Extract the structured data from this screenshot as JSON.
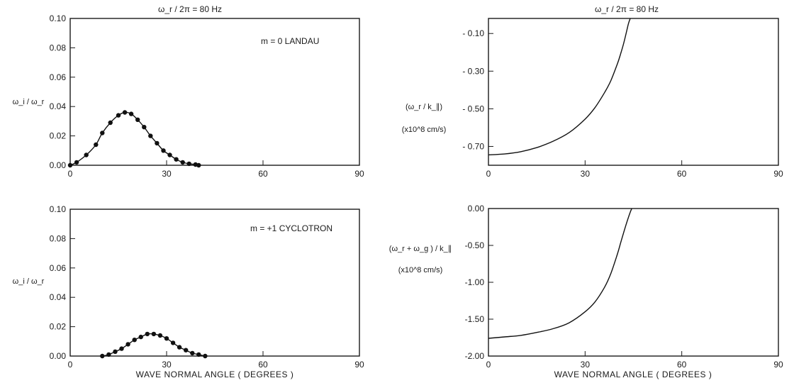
{
  "chart_data": [
    {
      "id": "p1",
      "type": "line",
      "title": "ω_r / 2π = 80 Hz",
      "annotation": "m = 0  LANDAU",
      "ylabel": "ω_i / ω_r",
      "xlabel": "",
      "xlim": [
        0,
        90
      ],
      "ylim": [
        0,
        0.1
      ],
      "xticks": [
        0,
        30,
        60,
        90
      ],
      "yticks": [
        0.0,
        0.02,
        0.04,
        0.06,
        0.08,
        0.1
      ],
      "ytick_labels": [
        "0.00",
        "0.02",
        "0.04",
        "0.06",
        "0.08",
        "0.10"
      ],
      "markers": true,
      "x": [
        0,
        2,
        5,
        8,
        10,
        12.5,
        15,
        17,
        19,
        21,
        23,
        25,
        27,
        29,
        31,
        33,
        35,
        37,
        39,
        40
      ],
      "y": [
        0.0,
        0.002,
        0.007,
        0.014,
        0.022,
        0.029,
        0.034,
        0.036,
        0.035,
        0.031,
        0.026,
        0.02,
        0.015,
        0.01,
        0.007,
        0.004,
        0.002,
        0.001,
        0.0005,
        0.0
      ]
    },
    {
      "id": "p2",
      "type": "line",
      "title": "ω_r / 2π = 80 Hz",
      "annotation": "",
      "ylabel": "(ω_r / k_∥)",
      "ylabel2": "(x10^8 cm/s)",
      "xlabel": "",
      "xlim": [
        0,
        90
      ],
      "ylim": [
        -0.8,
        -0.02
      ],
      "xticks": [
        0,
        30,
        60,
        90
      ],
      "yticks": [
        -0.1,
        -0.3,
        -0.5,
        -0.7
      ],
      "ytick_labels": [
        "- 0.10",
        "- 0.30",
        "- 0.50",
        "- 0.70"
      ],
      "markers": false,
      "x": [
        0,
        5,
        10,
        15,
        20,
        25,
        30,
        33,
        36,
        38,
        40,
        41,
        42,
        43,
        43.5,
        44
      ],
      "y": [
        -0.745,
        -0.74,
        -0.728,
        -0.706,
        -0.673,
        -0.627,
        -0.555,
        -0.495,
        -0.415,
        -0.35,
        -0.262,
        -0.21,
        -0.15,
        -0.08,
        -0.045,
        -0.02
      ]
    },
    {
      "id": "p3",
      "type": "line",
      "title": "",
      "annotation": "m = +1  CYCLOTRON",
      "ylabel": "ω_i / ω_r",
      "xlabel": "WAVE NORMAL ANGLE ( DEGREES )",
      "xlim": [
        0,
        90
      ],
      "ylim": [
        0,
        0.1
      ],
      "xticks": [
        0,
        30,
        60,
        90
      ],
      "yticks": [
        0.0,
        0.02,
        0.04,
        0.06,
        0.08,
        0.1
      ],
      "ytick_labels": [
        "0.00",
        "0.02",
        "0.04",
        "0.06",
        "0.08",
        "0.10"
      ],
      "markers": true,
      "x": [
        10,
        12,
        14,
        16,
        18,
        20,
        22,
        24,
        26,
        28,
        30,
        32,
        34,
        36,
        38,
        40,
        42
      ],
      "y": [
        0.0,
        0.001,
        0.003,
        0.005,
        0.008,
        0.011,
        0.013,
        0.015,
        0.015,
        0.014,
        0.012,
        0.009,
        0.006,
        0.004,
        0.002,
        0.001,
        0.0
      ]
    },
    {
      "id": "p4",
      "type": "line",
      "title": "",
      "annotation": "",
      "ylabel": "(ω_r + ω_g ) / k_∥",
      "ylabel2": "(x10^8 cm/s)",
      "xlabel": "WAVE NORMAL ANGLE ( DEGREES )",
      "xlim": [
        0,
        90
      ],
      "ylim": [
        -2.0,
        0.0
      ],
      "xticks": [
        0,
        30,
        60,
        90
      ],
      "yticks": [
        0.0,
        -0.5,
        -1.0,
        -1.5,
        -2.0
      ],
      "ytick_labels": [
        "0.00",
        "-0.50",
        "-1.00",
        "-1.50",
        "-2.00"
      ],
      "markers": false,
      "x": [
        0,
        5,
        10,
        15,
        20,
        25,
        30,
        33,
        36,
        38,
        40,
        41,
        42,
        43,
        44,
        44.5
      ],
      "y": [
        -1.76,
        -1.74,
        -1.72,
        -1.68,
        -1.63,
        -1.55,
        -1.4,
        -1.27,
        -1.07,
        -0.88,
        -0.62,
        -0.47,
        -0.32,
        -0.18,
        -0.05,
        0.0
      ]
    }
  ]
}
